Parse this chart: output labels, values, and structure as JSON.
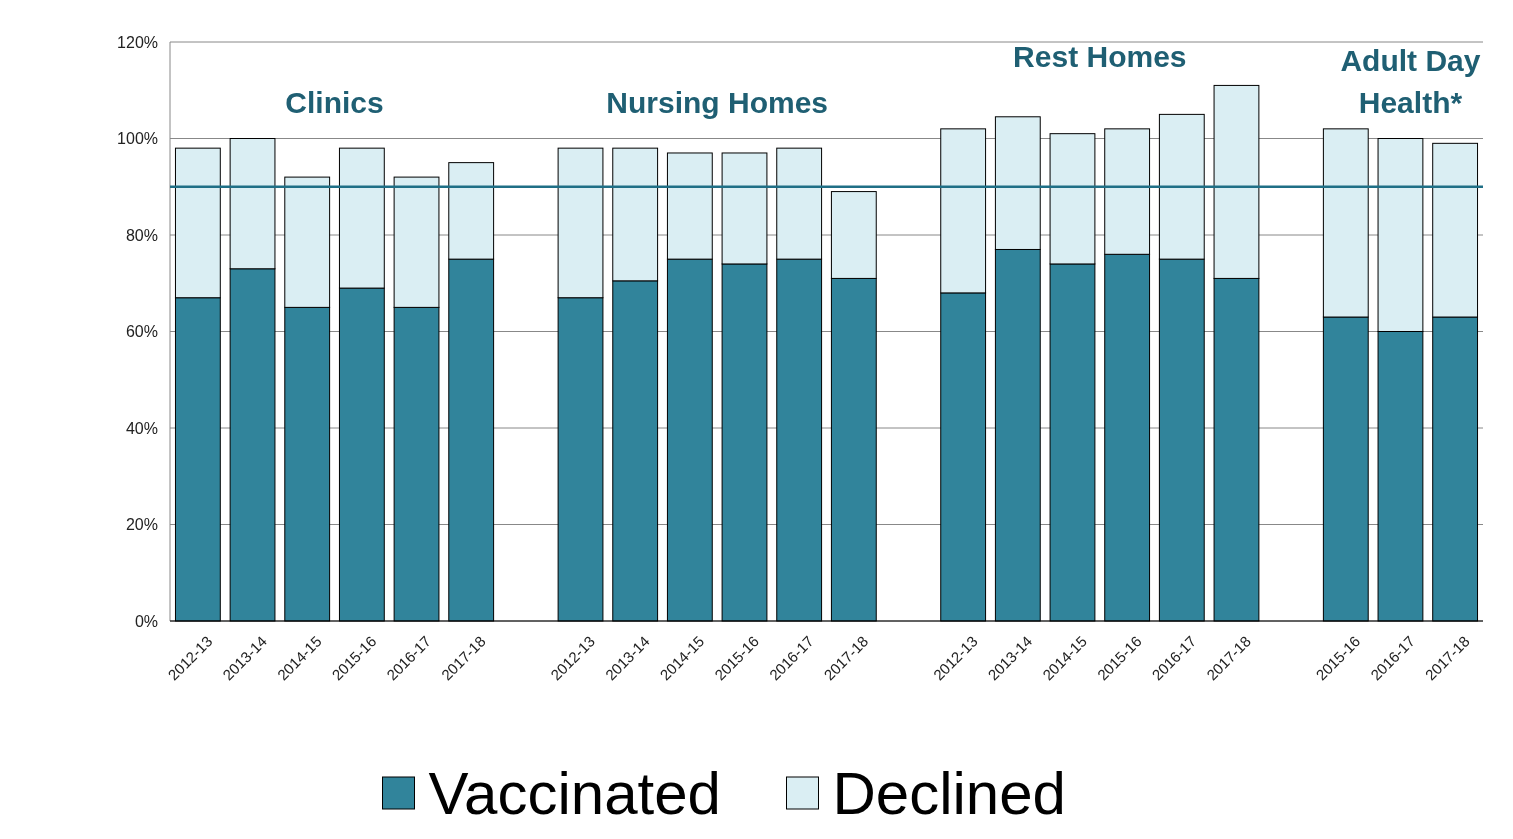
{
  "chart_data": {
    "type": "bar",
    "stacked": true,
    "categories": [
      "2012-13",
      "2013-14",
      "2014-15",
      "2015-16",
      "2016-17",
      "2017-18",
      null,
      "2012-13",
      "2013-14",
      "2014-15",
      "2015-16",
      "2016-17",
      "2017-18",
      null,
      "2012-13",
      "2013-14",
      "2014-15",
      "2015-16",
      "2016-17",
      "2017-18",
      null,
      "2015-16",
      "2016-17",
      "2017-18"
    ],
    "series": [
      {
        "name": "Vaccinated",
        "color": "#31849b",
        "values": [
          67,
          73,
          65,
          69,
          65,
          75,
          null,
          67,
          70.5,
          75,
          74,
          75,
          71,
          null,
          68,
          77,
          74,
          76,
          75,
          71,
          null,
          63,
          60,
          63
        ]
      },
      {
        "name": "Declined",
        "color": "#daeef3",
        "values": [
          31,
          27,
          27,
          29,
          27,
          20,
          null,
          31,
          27.5,
          22,
          23,
          23,
          18,
          null,
          34,
          27.5,
          27,
          26,
          30,
          40,
          null,
          39,
          40,
          36
        ]
      }
    ],
    "ylim": [
      0,
      120
    ],
    "yticks": [
      {
        "value": 0,
        "label": "0%"
      },
      {
        "value": 20,
        "label": "20%"
      },
      {
        "value": 40,
        "label": "40%"
      },
      {
        "value": 60,
        "label": "60%"
      },
      {
        "value": 80,
        "label": "80%"
      },
      {
        "value": 100,
        "label": "100%"
      },
      {
        "value": 120,
        "label": "120%"
      }
    ],
    "grid": "y",
    "legend": "bottom",
    "ref_lines": [
      {
        "axis": "y",
        "value": 90,
        "color": "#1f6f86"
      }
    ],
    "annotations": [
      "Clinics",
      "Nursing Homes",
      "Rest Homes",
      "Adult Day Health*"
    ]
  }
}
